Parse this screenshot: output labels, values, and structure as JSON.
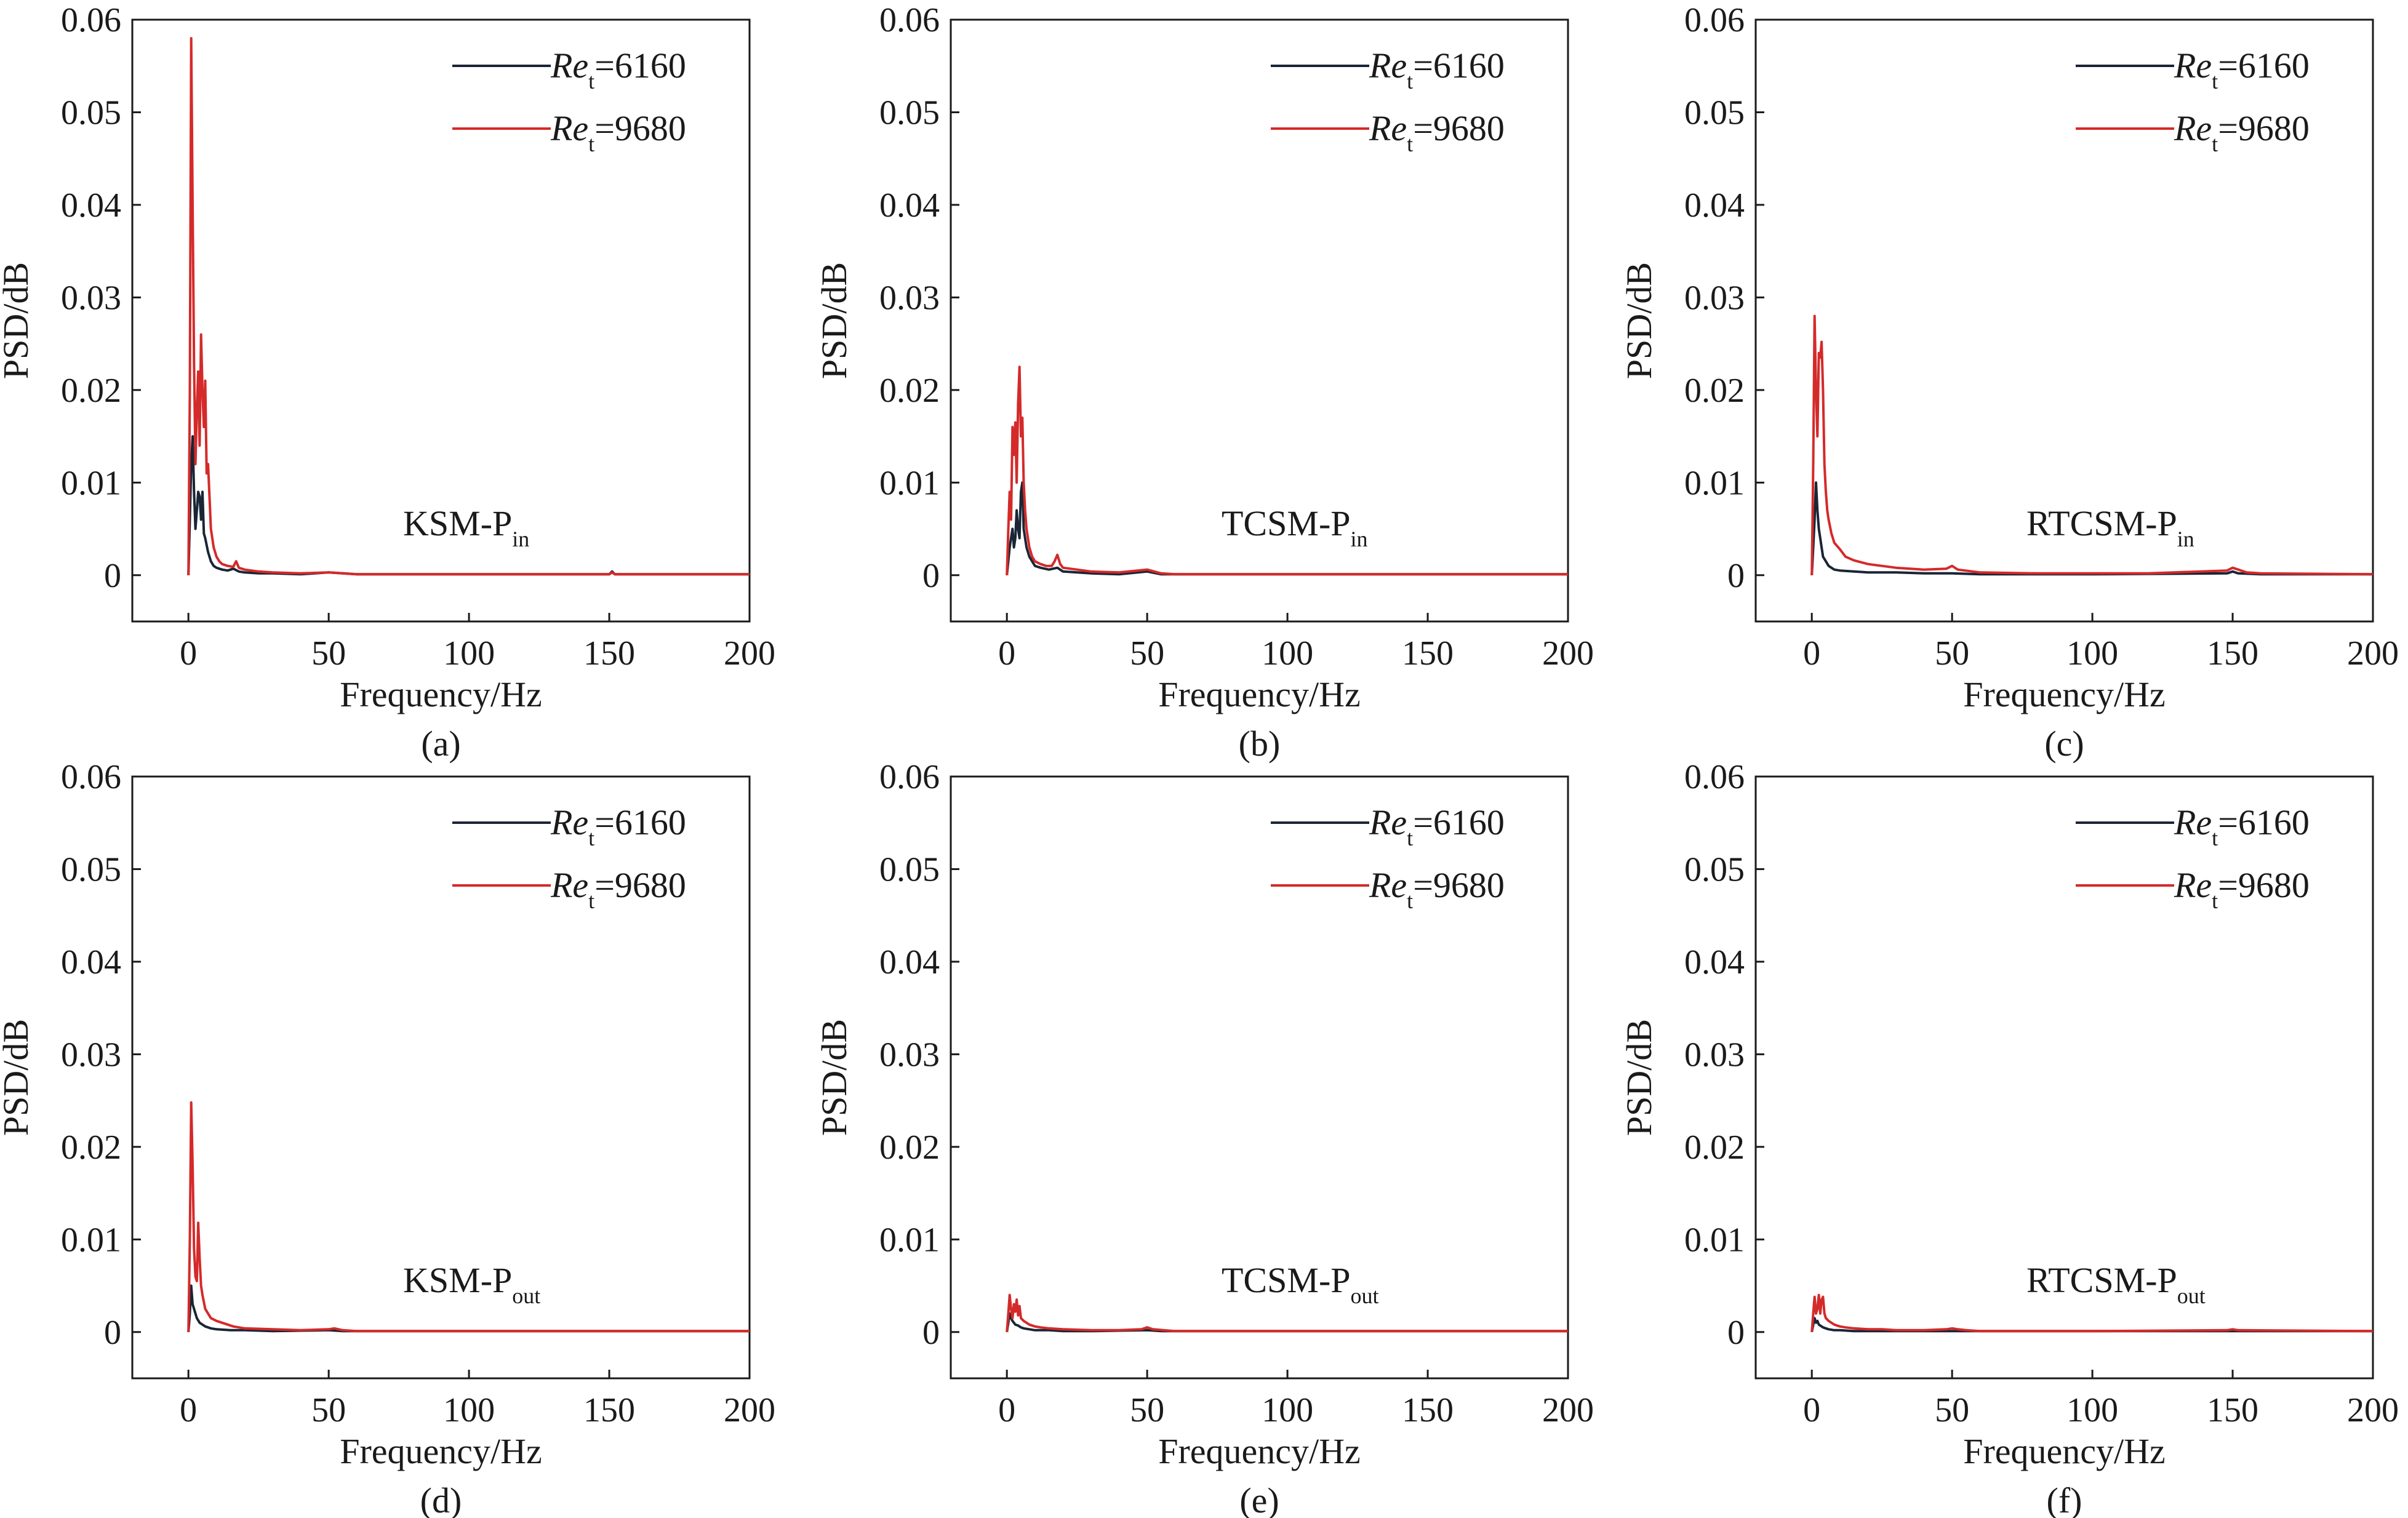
{
  "figure": {
    "colors": {
      "series_a": "#1a2535",
      "series_b": "#d42a2a",
      "axis": "#1a1a1a"
    }
  },
  "chart_data": [
    {
      "id": "a",
      "type": "line",
      "panel_label": "(a)",
      "annotation": {
        "main": "KSM-P",
        "sub": "in"
      },
      "xlabel": "Frequency/Hz",
      "ylabel": "PSD/dB",
      "xlim": [
        -20,
        200
      ],
      "ylim": [
        -0.005,
        0.06
      ],
      "xticks": [
        0,
        50,
        100,
        150,
        200
      ],
      "yticks": [
        0,
        0.01,
        0.02,
        0.03,
        0.04,
        0.05,
        0.06
      ],
      "ytick_labels": [
        "0",
        "0.01",
        "0.02",
        "0.03",
        "0.04",
        "0.05",
        "0.06"
      ],
      "legend_position": "top-right",
      "series": [
        {
          "name": "Re",
          "name_sub": "t",
          "name_value": "=6160",
          "color": "#1a2535",
          "x": [
            0,
            0.5,
            1,
            1.5,
            2,
            2.5,
            3,
            3.5,
            4,
            4.5,
            5,
            5.5,
            6,
            7,
            8,
            9,
            10,
            12,
            14,
            16,
            18,
            20,
            25,
            30,
            40,
            50,
            60,
            80,
            100,
            120,
            150,
            151,
            152,
            170,
            200
          ],
          "y": [
            0,
            0.006,
            0.012,
            0.015,
            0.009,
            0.005,
            0.007,
            0.009,
            0.0085,
            0.006,
            0.009,
            0.0045,
            0.004,
            0.0025,
            0.0015,
            0.001,
            0.0008,
            0.0006,
            0.0005,
            0.0007,
            0.0004,
            0.0003,
            0.0002,
            0.0002,
            0.0001,
            0.0003,
            0.0001,
            0.0001,
            0.0001,
            0.0001,
            0.0001,
            0.0004,
            0.0001,
            0.0001,
            0.0001
          ]
        },
        {
          "name": "Re",
          "name_sub": "t",
          "name_value": "=9680",
          "color": "#d42a2a",
          "x": [
            0,
            0.5,
            1,
            1.5,
            2,
            2.5,
            3,
            3.5,
            4,
            4.5,
            5,
            5.5,
            6,
            6.5,
            7,
            8,
            9,
            10,
            11,
            12,
            14,
            16,
            17,
            18,
            20,
            25,
            30,
            40,
            50,
            55,
            60,
            80,
            100,
            120,
            150,
            151,
            152,
            170,
            200
          ],
          "y": [
            0,
            0.02,
            0.058,
            0.04,
            0.023,
            0.012,
            0.018,
            0.022,
            0.014,
            0.026,
            0.02,
            0.016,
            0.021,
            0.011,
            0.012,
            0.005,
            0.003,
            0.002,
            0.0015,
            0.0012,
            0.001,
            0.0009,
            0.0015,
            0.0008,
            0.0006,
            0.0004,
            0.0003,
            0.0002,
            0.0003,
            0.0002,
            0.0001,
            0.0001,
            0.0001,
            0.0001,
            0.0001,
            0.0003,
            0.0001,
            0.0001,
            0.0001
          ]
        }
      ]
    },
    {
      "id": "b",
      "type": "line",
      "panel_label": "(b)",
      "annotation": {
        "main": "TCSM-P",
        "sub": "in"
      },
      "xlabel": "Frequency/Hz",
      "ylabel": "PSD/dB",
      "xlim": [
        -20,
        200
      ],
      "ylim": [
        -0.005,
        0.06
      ],
      "xticks": [
        0,
        50,
        100,
        150,
        200
      ],
      "yticks": [
        0,
        0.01,
        0.02,
        0.03,
        0.04,
        0.05,
        0.06
      ],
      "ytick_labels": [
        "0",
        "0.01",
        "0.02",
        "0.03",
        "0.04",
        "0.05",
        "0.06"
      ],
      "legend_position": "top-right",
      "series": [
        {
          "name": "Re",
          "name_sub": "t",
          "name_value": "=6160",
          "color": "#1a2535",
          "x": [
            0,
            1,
            2,
            2.5,
            3,
            3.5,
            4,
            4.5,
            5,
            5.5,
            6,
            7,
            8,
            9,
            10,
            12,
            15,
            18,
            20,
            30,
            40,
            50,
            55,
            60,
            100,
            150,
            200
          ],
          "y": [
            0,
            0.003,
            0.005,
            0.003,
            0.004,
            0.007,
            0.005,
            0.004,
            0.009,
            0.01,
            0.005,
            0.003,
            0.002,
            0.0015,
            0.001,
            0.0008,
            0.0006,
            0.0008,
            0.0004,
            0.0002,
            0.0001,
            0.0004,
            0.0001,
            0.0001,
            0.0001,
            0.0001,
            0.0001
          ]
        },
        {
          "name": "Re",
          "name_sub": "t",
          "name_value": "=9680",
          "color": "#d42a2a",
          "x": [
            0,
            0.5,
            1,
            1.5,
            2,
            2.5,
            3,
            3.5,
            4,
            4.5,
            5,
            5.5,
            6,
            6.5,
            7,
            8,
            9,
            10,
            12,
            14,
            16,
            17,
            18,
            19,
            20,
            25,
            30,
            40,
            50,
            55,
            60,
            80,
            100,
            150,
            200
          ],
          "y": [
            0,
            0.005,
            0.009,
            0.006,
            0.016,
            0.013,
            0.0165,
            0.01,
            0.0185,
            0.0225,
            0.015,
            0.017,
            0.01,
            0.007,
            0.005,
            0.003,
            0.002,
            0.0015,
            0.0012,
            0.001,
            0.001,
            0.0015,
            0.0022,
            0.0012,
            0.0008,
            0.0006,
            0.0004,
            0.0003,
            0.0006,
            0.0002,
            0.0001,
            0.0001,
            0.0001,
            0.0001,
            0.0001
          ]
        }
      ]
    },
    {
      "id": "c",
      "type": "line",
      "panel_label": "(c)",
      "annotation": {
        "main": "RTCSM-P",
        "sub": "in"
      },
      "xlabel": "Frequency/Hz",
      "ylabel": "PSD/dB",
      "xlim": [
        -20,
        200
      ],
      "ylim": [
        -0.005,
        0.06
      ],
      "xticks": [
        0,
        50,
        100,
        150,
        200
      ],
      "yticks": [
        0,
        0.01,
        0.02,
        0.03,
        0.04,
        0.05,
        0.06
      ],
      "ytick_labels": [
        "0",
        "0.01",
        "0.02",
        "0.03",
        "0.04",
        "0.05",
        "0.06"
      ],
      "legend_position": "top-right",
      "series": [
        {
          "name": "Re",
          "name_sub": "t",
          "name_value": "=6160",
          "color": "#1a2535",
          "x": [
            0,
            0.5,
            1,
            1.5,
            2,
            2.5,
            3,
            3.5,
            4,
            5,
            6,
            8,
            10,
            15,
            20,
            30,
            40,
            50,
            60,
            100,
            148,
            150,
            152,
            160,
            200
          ],
          "y": [
            0,
            0.003,
            0.006,
            0.01,
            0.007,
            0.005,
            0.004,
            0.003,
            0.002,
            0.0015,
            0.001,
            0.0006,
            0.0005,
            0.0004,
            0.0003,
            0.0003,
            0.0002,
            0.0002,
            0.0001,
            0.0001,
            0.0002,
            0.0004,
            0.0002,
            0.0001,
            0.0001
          ]
        },
        {
          "name": "Re",
          "name_sub": "t",
          "name_value": "=9680",
          "color": "#d42a2a",
          "x": [
            0,
            0.5,
            1,
            1.5,
            2,
            2.5,
            3,
            3.5,
            4,
            4.5,
            5,
            5.5,
            6,
            7,
            8,
            10,
            12,
            15,
            20,
            25,
            30,
            40,
            48,
            50,
            52,
            60,
            80,
            100,
            120,
            148,
            150,
            152,
            155,
            160,
            200
          ],
          "y": [
            0,
            0.012,
            0.028,
            0.02,
            0.015,
            0.024,
            0.0235,
            0.0252,
            0.02,
            0.012,
            0.009,
            0.007,
            0.006,
            0.0045,
            0.0035,
            0.0028,
            0.002,
            0.0016,
            0.0012,
            0.001,
            0.0008,
            0.0006,
            0.0007,
            0.001,
            0.0006,
            0.0003,
            0.0002,
            0.0002,
            0.0002,
            0.0005,
            0.0008,
            0.0006,
            0.0003,
            0.0002,
            0.0001
          ]
        }
      ]
    },
    {
      "id": "d",
      "type": "line",
      "panel_label": "(d)",
      "annotation": {
        "main": "KSM-P",
        "sub": "out"
      },
      "xlabel": "Frequency/Hz",
      "ylabel": "PSD/dB",
      "xlim": [
        -20,
        200
      ],
      "ylim": [
        -0.005,
        0.06
      ],
      "xticks": [
        0,
        50,
        100,
        150,
        200
      ],
      "yticks": [
        0,
        0.01,
        0.02,
        0.03,
        0.04,
        0.05,
        0.06
      ],
      "ytick_labels": [
        "0",
        "0.01",
        "0.02",
        "0.03",
        "0.04",
        "0.05",
        "0.06"
      ],
      "legend_position": "top-right",
      "series": [
        {
          "name": "Re",
          "name_sub": "t",
          "name_value": "=6160",
          "color": "#1a2535",
          "x": [
            0,
            0.5,
            1,
            1.5,
            2,
            2.5,
            3,
            4,
            5,
            6,
            8,
            10,
            15,
            20,
            30,
            50,
            55,
            60,
            100,
            150,
            200
          ],
          "y": [
            0,
            0.002,
            0.005,
            0.003,
            0.0025,
            0.002,
            0.0015,
            0.001,
            0.0008,
            0.0006,
            0.0004,
            0.0003,
            0.0002,
            0.0002,
            0.0001,
            0.0002,
            0.0001,
            0.0001,
            0.0001,
            0.0001,
            0.0001
          ]
        },
        {
          "name": "Re",
          "name_sub": "t",
          "name_value": "=9680",
          "color": "#d42a2a",
          "x": [
            0,
            0.5,
            1,
            1.5,
            2,
            2.5,
            3,
            3.5,
            4,
            4.5,
            5,
            6,
            7,
            8,
            10,
            12,
            14,
            16,
            18,
            20,
            30,
            40,
            50,
            52,
            55,
            60,
            80,
            100,
            150,
            200
          ],
          "y": [
            0,
            0.01,
            0.0248,
            0.018,
            0.009,
            0.006,
            0.0055,
            0.0118,
            0.008,
            0.005,
            0.004,
            0.0025,
            0.002,
            0.0015,
            0.0012,
            0.001,
            0.0008,
            0.0006,
            0.0005,
            0.0004,
            0.0003,
            0.0002,
            0.0003,
            0.0004,
            0.0002,
            0.0001,
            0.0001,
            0.0001,
            0.0001,
            0.0001
          ]
        }
      ]
    },
    {
      "id": "e",
      "type": "line",
      "panel_label": "(e)",
      "annotation": {
        "main": "TCSM-P",
        "sub": "out"
      },
      "xlabel": "Frequency/Hz",
      "ylabel": "PSD/dB",
      "xlim": [
        -20,
        200
      ],
      "ylim": [
        -0.005,
        0.06
      ],
      "xticks": [
        0,
        50,
        100,
        150,
        200
      ],
      "yticks": [
        0,
        0.01,
        0.02,
        0.03,
        0.04,
        0.05,
        0.06
      ],
      "ytick_labels": [
        "0",
        "0.01",
        "0.02",
        "0.03",
        "0.04",
        "0.05",
        "0.06"
      ],
      "legend_position": "top-right",
      "series": [
        {
          "name": "Re",
          "name_sub": "t",
          "name_value": "=6160",
          "color": "#1a2535",
          "x": [
            0,
            0.5,
            1,
            1.5,
            2,
            2.5,
            3,
            4,
            5,
            6,
            8,
            10,
            15,
            20,
            30,
            50,
            55,
            100,
            150,
            200
          ],
          "y": [
            0,
            0.001,
            0.002,
            0.0015,
            0.0012,
            0.001,
            0.0008,
            0.0007,
            0.0005,
            0.0004,
            0.0003,
            0.0002,
            0.0002,
            0.0001,
            0.0001,
            0.0002,
            0.0001,
            0.0001,
            0.0001,
            0.0001
          ]
        },
        {
          "name": "Re",
          "name_sub": "t",
          "name_value": "=9680",
          "color": "#d42a2a",
          "x": [
            0,
            0.5,
            1,
            1.5,
            2,
            2.5,
            3,
            3.5,
            4,
            4.5,
            5,
            6,
            7,
            8,
            10,
            12,
            15,
            20,
            30,
            40,
            48,
            50,
            52,
            60,
            100,
            150,
            200
          ],
          "y": [
            0,
            0.002,
            0.004,
            0.0025,
            0.0015,
            0.003,
            0.0022,
            0.0035,
            0.0018,
            0.0028,
            0.0015,
            0.0012,
            0.001,
            0.0008,
            0.0006,
            0.0005,
            0.0004,
            0.0003,
            0.0002,
            0.0002,
            0.0003,
            0.0005,
            0.0003,
            0.0001,
            0.0001,
            0.0001,
            0.0001
          ]
        }
      ]
    },
    {
      "id": "f",
      "type": "line",
      "panel_label": "(f)",
      "annotation": {
        "main": "RTCSM-P",
        "sub": "out"
      },
      "xlabel": "Frequency/Hz",
      "ylabel": "PSD/dB",
      "xlim": [
        -20,
        200
      ],
      "ylim": [
        -0.005,
        0.06
      ],
      "xticks": [
        0,
        50,
        100,
        150,
        200
      ],
      "yticks": [
        0,
        0.01,
        0.02,
        0.03,
        0.04,
        0.05,
        0.06
      ],
      "ytick_labels": [
        "0",
        "0.01",
        "0.02",
        "0.03",
        "0.04",
        "0.05",
        "0.06"
      ],
      "legend_position": "top-right",
      "series": [
        {
          "name": "Re",
          "name_sub": "t",
          "name_value": "=6160",
          "color": "#1a2535",
          "x": [
            0,
            0.5,
            1,
            1.5,
            2,
            2.5,
            3,
            4,
            5,
            6,
            8,
            10,
            15,
            20,
            30,
            50,
            100,
            150,
            200
          ],
          "y": [
            0,
            0.0008,
            0.0015,
            0.001,
            0.0012,
            0.0008,
            0.0007,
            0.0005,
            0.0004,
            0.0003,
            0.0002,
            0.0002,
            0.0001,
            0.0001,
            0.0001,
            0.0001,
            0.0001,
            0.0001,
            0.0001
          ]
        },
        {
          "name": "Re",
          "name_sub": "t",
          "name_value": "=9680",
          "color": "#d42a2a",
          "x": [
            0,
            0.5,
            1,
            1.5,
            2,
            2.5,
            3,
            3.5,
            4,
            4.5,
            5,
            6,
            7,
            8,
            10,
            12,
            15,
            20,
            25,
            30,
            40,
            48,
            50,
            52,
            55,
            60,
            100,
            148,
            150,
            152,
            200
          ],
          "y": [
            0,
            0.002,
            0.0038,
            0.002,
            0.0025,
            0.004,
            0.002,
            0.0035,
            0.0038,
            0.002,
            0.0015,
            0.0012,
            0.001,
            0.0008,
            0.0006,
            0.0005,
            0.0004,
            0.0003,
            0.0003,
            0.0002,
            0.0002,
            0.0003,
            0.0004,
            0.0003,
            0.0002,
            0.0001,
            0.0001,
            0.0002,
            0.0003,
            0.0002,
            0.0001
          ]
        }
      ]
    }
  ]
}
